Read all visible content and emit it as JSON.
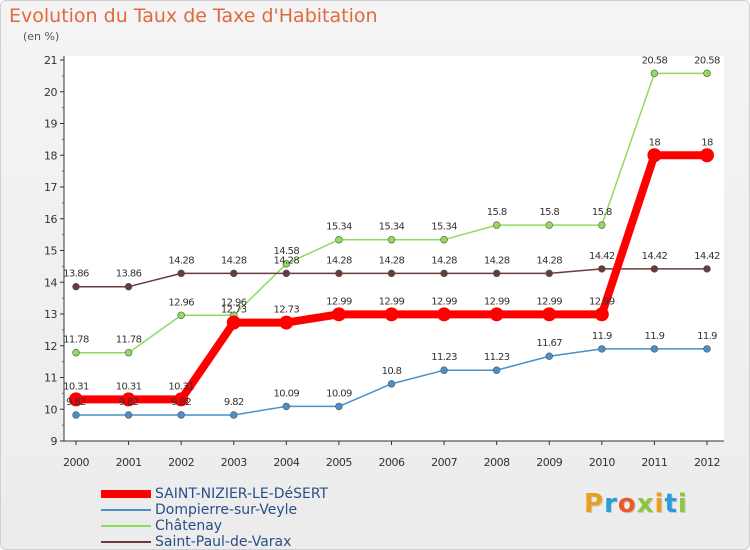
{
  "title": "Evolution du Taux de Taxe d'Habitation",
  "subtitle": "(en %)",
  "logo_text": "Proxiti",
  "chart_data": {
    "type": "line",
    "title": "Evolution du Taux de Taxe d'Habitation",
    "subtitle": "(en %)",
    "xlabel": "",
    "ylabel": "",
    "x": [
      2000,
      2001,
      2002,
      2003,
      2004,
      2005,
      2006,
      2007,
      2008,
      2009,
      2010,
      2011,
      2012
    ],
    "ylim": [
      9,
      21
    ],
    "yticks": [
      9,
      10,
      11,
      12,
      13,
      14,
      15,
      16,
      17,
      18,
      19,
      20,
      21
    ],
    "grid": false,
    "legend_position": "bottom-left",
    "series": [
      {
        "name": "SAINT-NIZIER-LE-DéSERT",
        "color": "#ff0000",
        "emphasis": true,
        "values": [
          10.31,
          10.31,
          10.31,
          12.73,
          12.73,
          12.99,
          12.99,
          12.99,
          12.99,
          12.99,
          12.99,
          18,
          18
        ],
        "labels": [
          "10.31",
          "10.31",
          "10.31",
          "12.73",
          "12.73",
          "12.99",
          "12.99",
          "12.99",
          "12.99",
          "12.99",
          "12.99",
          "18",
          "18"
        ]
      },
      {
        "name": "Dompierre-sur-Veyle",
        "color": "#4a8fc8",
        "emphasis": false,
        "values": [
          9.82,
          9.82,
          9.82,
          9.82,
          10.09,
          10.09,
          10.8,
          11.23,
          11.23,
          11.67,
          11.9,
          11.9,
          11.9
        ],
        "labels": [
          "9.82",
          "9.82",
          "9.82",
          "9.82",
          "10.09",
          "10.09",
          "10.8",
          "11.23",
          "11.23",
          "11.67",
          "11.9",
          "11.9",
          "11.9"
        ]
      },
      {
        "name": "Châtenay",
        "color": "#8fdc5a",
        "emphasis": false,
        "values": [
          11.78,
          11.78,
          12.96,
          12.96,
          14.58,
          15.34,
          15.34,
          15.34,
          15.8,
          15.8,
          15.8,
          20.58,
          20.58
        ],
        "labels": [
          "11.78",
          "11.78",
          "12.96",
          "12.96",
          "14.58",
          "15.34",
          "15.34",
          "15.34",
          "15.8",
          "15.8",
          "15.8",
          "20.58",
          "20.58"
        ]
      },
      {
        "name": "Saint-Paul-de-Varax",
        "color": "#6b3a3a",
        "emphasis": false,
        "values": [
          13.86,
          13.86,
          14.28,
          14.28,
          14.28,
          14.28,
          14.28,
          14.28,
          14.28,
          14.28,
          14.42,
          14.42,
          14.42
        ],
        "labels": [
          "13.86",
          "13.86",
          "14.28",
          "14.28",
          "14.28",
          "14.28",
          "14.28",
          "14.28",
          "14.28",
          "14.28",
          "14.42",
          "14.42",
          "14.42"
        ]
      }
    ]
  }
}
